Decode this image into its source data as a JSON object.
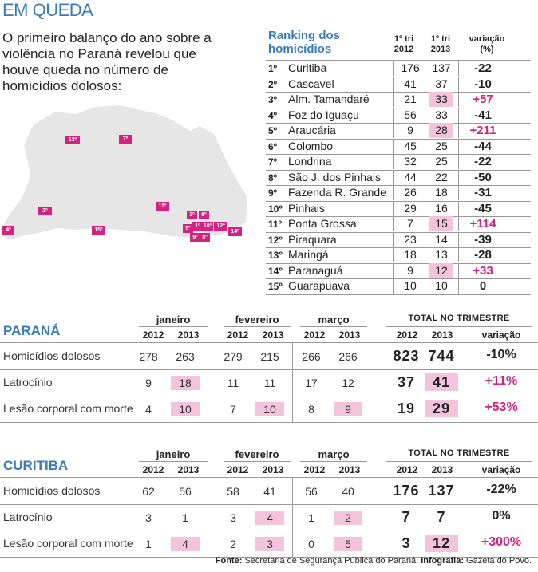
{
  "title": "EM QUEDA",
  "intro": "O primeiro balanço do ano sobre a violência no Paraná revelou que houve queda no número de homicídios dolosos:",
  "ranking": {
    "title_line1": "Ranking dos",
    "title_line2": "homicídios",
    "col_a": "1º tri 2012",
    "col_b": "1º tri 2013",
    "col_v": "variação (%)",
    "rows": [
      {
        "pos": "1º",
        "city": "Curitiba",
        "a": "176",
        "b": "137",
        "v": "-22",
        "hb": false,
        "hv": false
      },
      {
        "pos": "2º",
        "city": "Cascavel",
        "a": "41",
        "b": "37",
        "v": "-10",
        "hb": false,
        "hv": false
      },
      {
        "pos": "3º",
        "city": "Alm. Tamandaré",
        "a": "21",
        "b": "33",
        "v": "+57",
        "hb": true,
        "hv": true
      },
      {
        "pos": "4º",
        "city": "Foz do Iguaçu",
        "a": "56",
        "b": "33",
        "v": "-41",
        "hb": false,
        "hv": false
      },
      {
        "pos": "5º",
        "city": "Araucária",
        "a": "9",
        "b": "28",
        "v": "+211",
        "hb": true,
        "hv": true
      },
      {
        "pos": "6º",
        "city": "Colombo",
        "a": "45",
        "b": "25",
        "v": "-44",
        "hb": false,
        "hv": false
      },
      {
        "pos": "7º",
        "city": "Londrina",
        "a": "32",
        "b": "25",
        "v": "-22",
        "hb": false,
        "hv": false
      },
      {
        "pos": "8º",
        "city": "São J. dos Pinhais",
        "a": "44",
        "b": "22",
        "v": "-50",
        "hb": false,
        "hv": false
      },
      {
        "pos": "9º",
        "city": "Fazenda R. Grande",
        "a": "26",
        "b": "18",
        "v": "-31",
        "hb": false,
        "hv": false
      },
      {
        "pos": "10º",
        "city": "Pinhais",
        "a": "29",
        "b": "16",
        "v": "-45",
        "hb": false,
        "hv": false
      },
      {
        "pos": "11º",
        "city": "Ponta Grossa",
        "a": "7",
        "b": "15",
        "v": "+114",
        "hb": true,
        "hv": true
      },
      {
        "pos": "12º",
        "city": "Piraquara",
        "a": "23",
        "b": "14",
        "v": "-39",
        "hb": false,
        "hv": false
      },
      {
        "pos": "13º",
        "city": "Maringá",
        "a": "18",
        "b": "13",
        "v": "-28",
        "hb": false,
        "hv": false
      },
      {
        "pos": "14º",
        "city": "Paranaguá",
        "a": "9",
        "b": "12",
        "v": "+33",
        "hb": true,
        "hv": true
      },
      {
        "pos": "15º",
        "city": "Guarapuava",
        "a": "10",
        "b": "10",
        "v": "0",
        "hb": false,
        "hv": false
      }
    ]
  },
  "map_pins": [
    "13º",
    "7º",
    "11º",
    "2º",
    "15º",
    "4º",
    "3º",
    "6º",
    "5º",
    "1º",
    "10º",
    "12º",
    "9º",
    "8º",
    "14º"
  ],
  "months": [
    "janeiro",
    "fevereiro",
    "março"
  ],
  "total_label": "TOTAL NO TRIMESTRE",
  "y2012": "2012",
  "y2013": "2013",
  "var_label": "variação",
  "parana": {
    "name": "PARANÁ",
    "rows": [
      {
        "label": "Homicídios dolosos",
        "c": [
          "278",
          "263",
          "279",
          "215",
          "266",
          "266"
        ],
        "t1": "823",
        "t2": "744",
        "v": "-10%",
        "p": [
          false,
          false,
          false,
          false,
          false,
          false
        ],
        "pt": false,
        "vm": false
      },
      {
        "label": "Latrocínio",
        "c": [
          "9",
          "18",
          "11",
          "11",
          "17",
          "12"
        ],
        "t1": "37",
        "t2": "41",
        "v": "+11%",
        "p": [
          false,
          true,
          false,
          false,
          false,
          false
        ],
        "pt": true,
        "vm": true
      },
      {
        "label": "Lesão corporal com morte",
        "c": [
          "4",
          "10",
          "7",
          "10",
          "8",
          "9"
        ],
        "t1": "19",
        "t2": "29",
        "v": "+53%",
        "p": [
          false,
          true,
          false,
          true,
          false,
          true
        ],
        "pt": true,
        "vm": true
      }
    ]
  },
  "curitiba": {
    "name": "CURITIBA",
    "rows": [
      {
        "label": "Homicídios dolosos",
        "c": [
          "62",
          "56",
          "58",
          "41",
          "56",
          "40"
        ],
        "t1": "176",
        "t2": "137",
        "v": "-22%",
        "p": [
          false,
          false,
          false,
          false,
          false,
          false
        ],
        "pt": false,
        "vm": false
      },
      {
        "label": "Latrocínio",
        "c": [
          "3",
          "1",
          "3",
          "4",
          "1",
          "2"
        ],
        "t1": "7",
        "t2": "7",
        "v": "0%",
        "p": [
          false,
          false,
          false,
          true,
          false,
          true
        ],
        "pt": false,
        "vm": false
      },
      {
        "label": "Lesão corporal com morte",
        "c": [
          "1",
          "4",
          "2",
          "3",
          "0",
          "5"
        ],
        "t1": "3",
        "t2": "12",
        "v": "+300%",
        "p": [
          false,
          true,
          false,
          true,
          false,
          true
        ],
        "pt": true,
        "vm": true
      }
    ]
  },
  "source": {
    "fonte_label": "Fonte:",
    "fonte": "Secretaria de Segurança Pública do Paraná.",
    "info_label": "Infografia:",
    "info": "Gazeta do Povo."
  },
  "colors": {
    "blue": "#3b7bb5",
    "magenta": "#d1237f",
    "pink": "#f4c3dc",
    "map": "#e6e6e6"
  }
}
